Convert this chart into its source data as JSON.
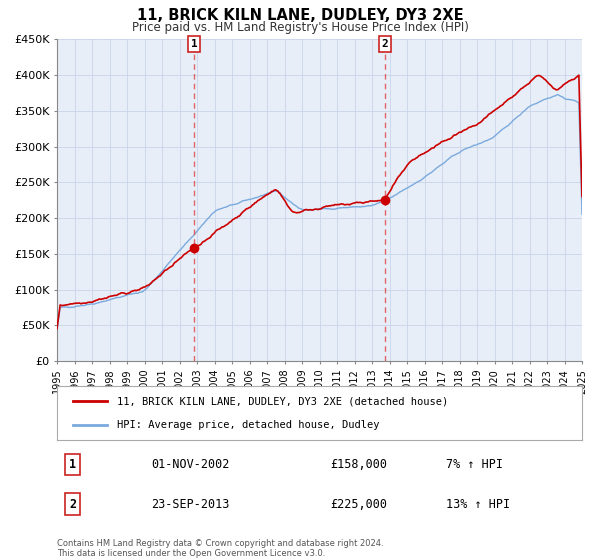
{
  "title": "11, BRICK KILN LANE, DUDLEY, DY3 2XE",
  "subtitle": "Price paid vs. HM Land Registry's House Price Index (HPI)",
  "xlim": [
    1995,
    2025
  ],
  "ylim": [
    0,
    450000
  ],
  "yticks": [
    0,
    50000,
    100000,
    150000,
    200000,
    250000,
    300000,
    350000,
    400000,
    450000
  ],
  "ytick_labels": [
    "£0",
    "£50K",
    "£100K",
    "£150K",
    "£200K",
    "£250K",
    "£300K",
    "£350K",
    "£400K",
    "£450K"
  ],
  "background_color": "#e8eef8",
  "grid_color": "#d0d8e8",
  "sale1_x": 2002.83,
  "sale1_y": 158000,
  "sale2_x": 2013.73,
  "sale2_y": 225000,
  "line1_color": "#cc0000",
  "line2_color": "#7aaadd",
  "marker_color": "#cc0000",
  "vline_color": "#dd5555",
  "legend_line1": "11, BRICK KILN LANE, DUDLEY, DY3 2XE (detached house)",
  "legend_line2": "HPI: Average price, detached house, Dudley",
  "table_row1_label": "1",
  "table_row1_date": "01-NOV-2002",
  "table_row1_price": "£158,000",
  "table_row1_hpi": "7% ↑ HPI",
  "table_row2_label": "2",
  "table_row2_date": "23-SEP-2013",
  "table_row2_price": "£225,000",
  "table_row2_hpi": "13% ↑ HPI",
  "footnote1": "Contains HM Land Registry data © Crown copyright and database right 2024.",
  "footnote2": "This data is licensed under the Open Government Licence v3.0."
}
